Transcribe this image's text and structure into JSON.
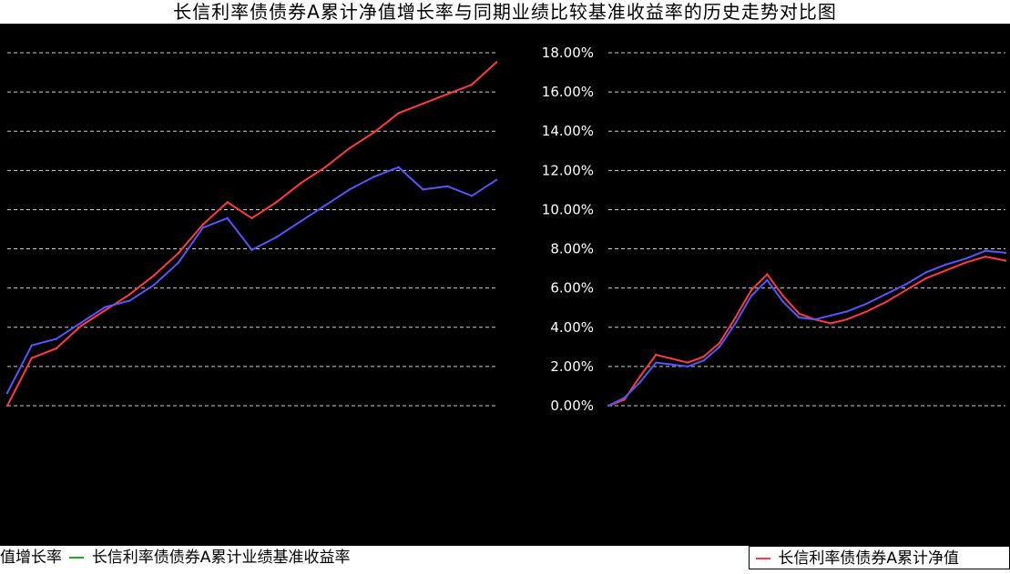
{
  "title": "长信利率债债券A累计净值增长率与同期业绩比较基准收益率的历史走势对比图",
  "colors": {
    "background": "#000000",
    "grid": "#ffffff",
    "nav": "#ff3b3b",
    "benchmark": "#5555ff",
    "benchmark_alt": "#22aa22"
  },
  "chart_data": [
    {
      "type": "line",
      "title": "",
      "y_ticks": [],
      "ylim": [
        7.5,
        18.6
      ],
      "x": [
        0,
        0.05,
        0.1,
        0.15,
        0.2,
        0.25,
        0.3,
        0.35,
        0.4,
        0.45,
        0.5,
        0.55,
        0.6,
        0.65,
        0.7,
        0.75,
        0.8,
        0.85,
        0.9,
        0.95,
        1.0
      ],
      "x_tick_labels": [
        "",
        "",
        "",
        "",
        "",
        "",
        "",
        "",
        "",
        "",
        "",
        ""
      ],
      "series": [
        {
          "name": "",
          "color": "#ff3b3b",
          "values": [
            7.5,
            9.0,
            9.3,
            10.0,
            10.5,
            11.0,
            11.6,
            12.3,
            13.2,
            13.9,
            13.4,
            13.9,
            14.5,
            15.0,
            15.6,
            16.1,
            16.7,
            17.0,
            17.3,
            17.6,
            18.3
          ]
        },
        {
          "name": "",
          "color": "#5555ff",
          "values": [
            7.9,
            9.4,
            9.6,
            10.1,
            10.6,
            10.8,
            11.3,
            12.0,
            13.1,
            13.4,
            12.4,
            12.8,
            13.3,
            13.8,
            14.3,
            14.7,
            15.0,
            14.3,
            14.4,
            14.1,
            14.6
          ]
        }
      ]
    },
    {
      "type": "line",
      "title": "",
      "y_ticks": [
        "0.00%",
        "2.00%",
        "4.00%",
        "6.00%",
        "8.00%",
        "10.00%",
        "12.00%",
        "14.00%",
        "16.00%",
        "18.00%"
      ],
      "ylim": [
        0,
        18
      ],
      "x": [
        0,
        0.04,
        0.08,
        0.12,
        0.16,
        0.2,
        0.24,
        0.28,
        0.32,
        0.36,
        0.4,
        0.44,
        0.48,
        0.52,
        0.56,
        0.6,
        0.65,
        0.7,
        0.75,
        0.8,
        0.85,
        0.9,
        0.95,
        1.0
      ],
      "x_tick_labels": [
        "",
        "",
        "",
        "",
        "",
        "",
        "",
        "",
        ""
      ],
      "series": [
        {
          "name": "长信利率债债券A累计净值增长率",
          "color": "#ff3b3b",
          "values": [
            0.0,
            0.3,
            1.5,
            2.6,
            2.4,
            2.2,
            2.5,
            3.2,
            4.5,
            5.9,
            6.7,
            5.6,
            4.7,
            4.4,
            4.2,
            4.4,
            4.8,
            5.3,
            5.9,
            6.5,
            6.9,
            7.3,
            7.6,
            7.4
          ]
        },
        {
          "name": "长信利率债债券A累计业绩基准收益率",
          "color": "#5555ff",
          "values": [
            0.0,
            0.4,
            1.2,
            2.2,
            2.1,
            2.0,
            2.3,
            3.0,
            4.2,
            5.6,
            6.4,
            5.3,
            4.5,
            4.4,
            4.6,
            4.8,
            5.2,
            5.7,
            6.2,
            6.8,
            7.2,
            7.5,
            7.9,
            7.8
          ]
        }
      ]
    }
  ],
  "legend_left": {
    "prefix": "值增长率",
    "label": "长信利率债债券A累计业绩基准收益率"
  },
  "legend_right": {
    "label": "长信利率债债券A累计净值"
  }
}
